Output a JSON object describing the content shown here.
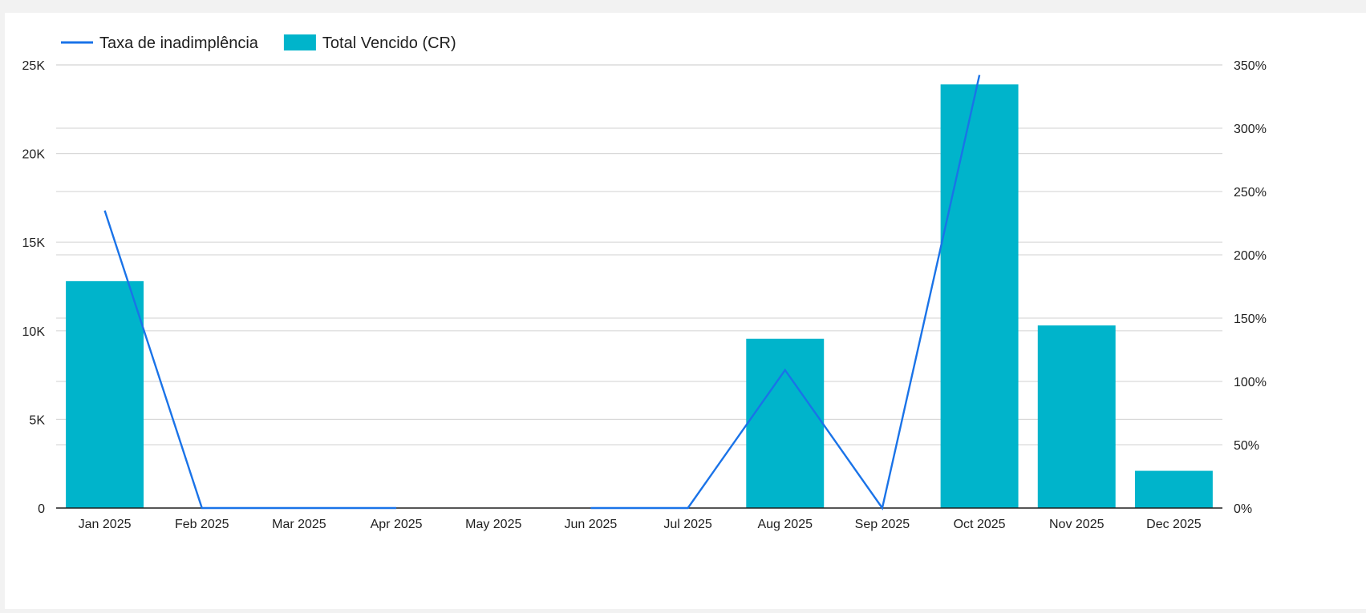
{
  "chart_data": {
    "type": "bar",
    "categories": [
      "Jan 2025",
      "Feb 2025",
      "Mar 2025",
      "Apr 2025",
      "May 2025",
      "Jun 2025",
      "Jul 2025",
      "Aug 2025",
      "Sep 2025",
      "Oct 2025",
      "Nov 2025",
      "Dec 2025"
    ],
    "series": [
      {
        "name": "Total Vencido (CR)",
        "type": "bar",
        "axis": "left",
        "color": "#00b4cb",
        "values": [
          12800,
          0,
          0,
          0,
          0,
          0,
          0,
          9550,
          0,
          23900,
          10300,
          2100
        ]
      },
      {
        "name": "Taxa de inadimplência",
        "type": "line",
        "axis": "right",
        "color": "#1a73e8",
        "values": [
          235,
          0,
          0,
          0,
          null,
          0,
          0,
          109,
          0,
          342,
          null,
          null
        ]
      }
    ],
    "y_left": {
      "min": 0,
      "max": 25000,
      "ticks": [
        0,
        5000,
        10000,
        15000,
        20000,
        25000
      ],
      "tick_labels": [
        "0",
        "5K",
        "10K",
        "15K",
        "20K",
        "25K"
      ]
    },
    "y_right": {
      "min": 0,
      "max": 350,
      "ticks": [
        0,
        50,
        100,
        150,
        200,
        250,
        300,
        350
      ],
      "tick_labels": [
        "0%",
        "50%",
        "100%",
        "150%",
        "200%",
        "250%",
        "300%",
        "350%"
      ]
    },
    "legend_position": "top-left",
    "grid": true
  }
}
